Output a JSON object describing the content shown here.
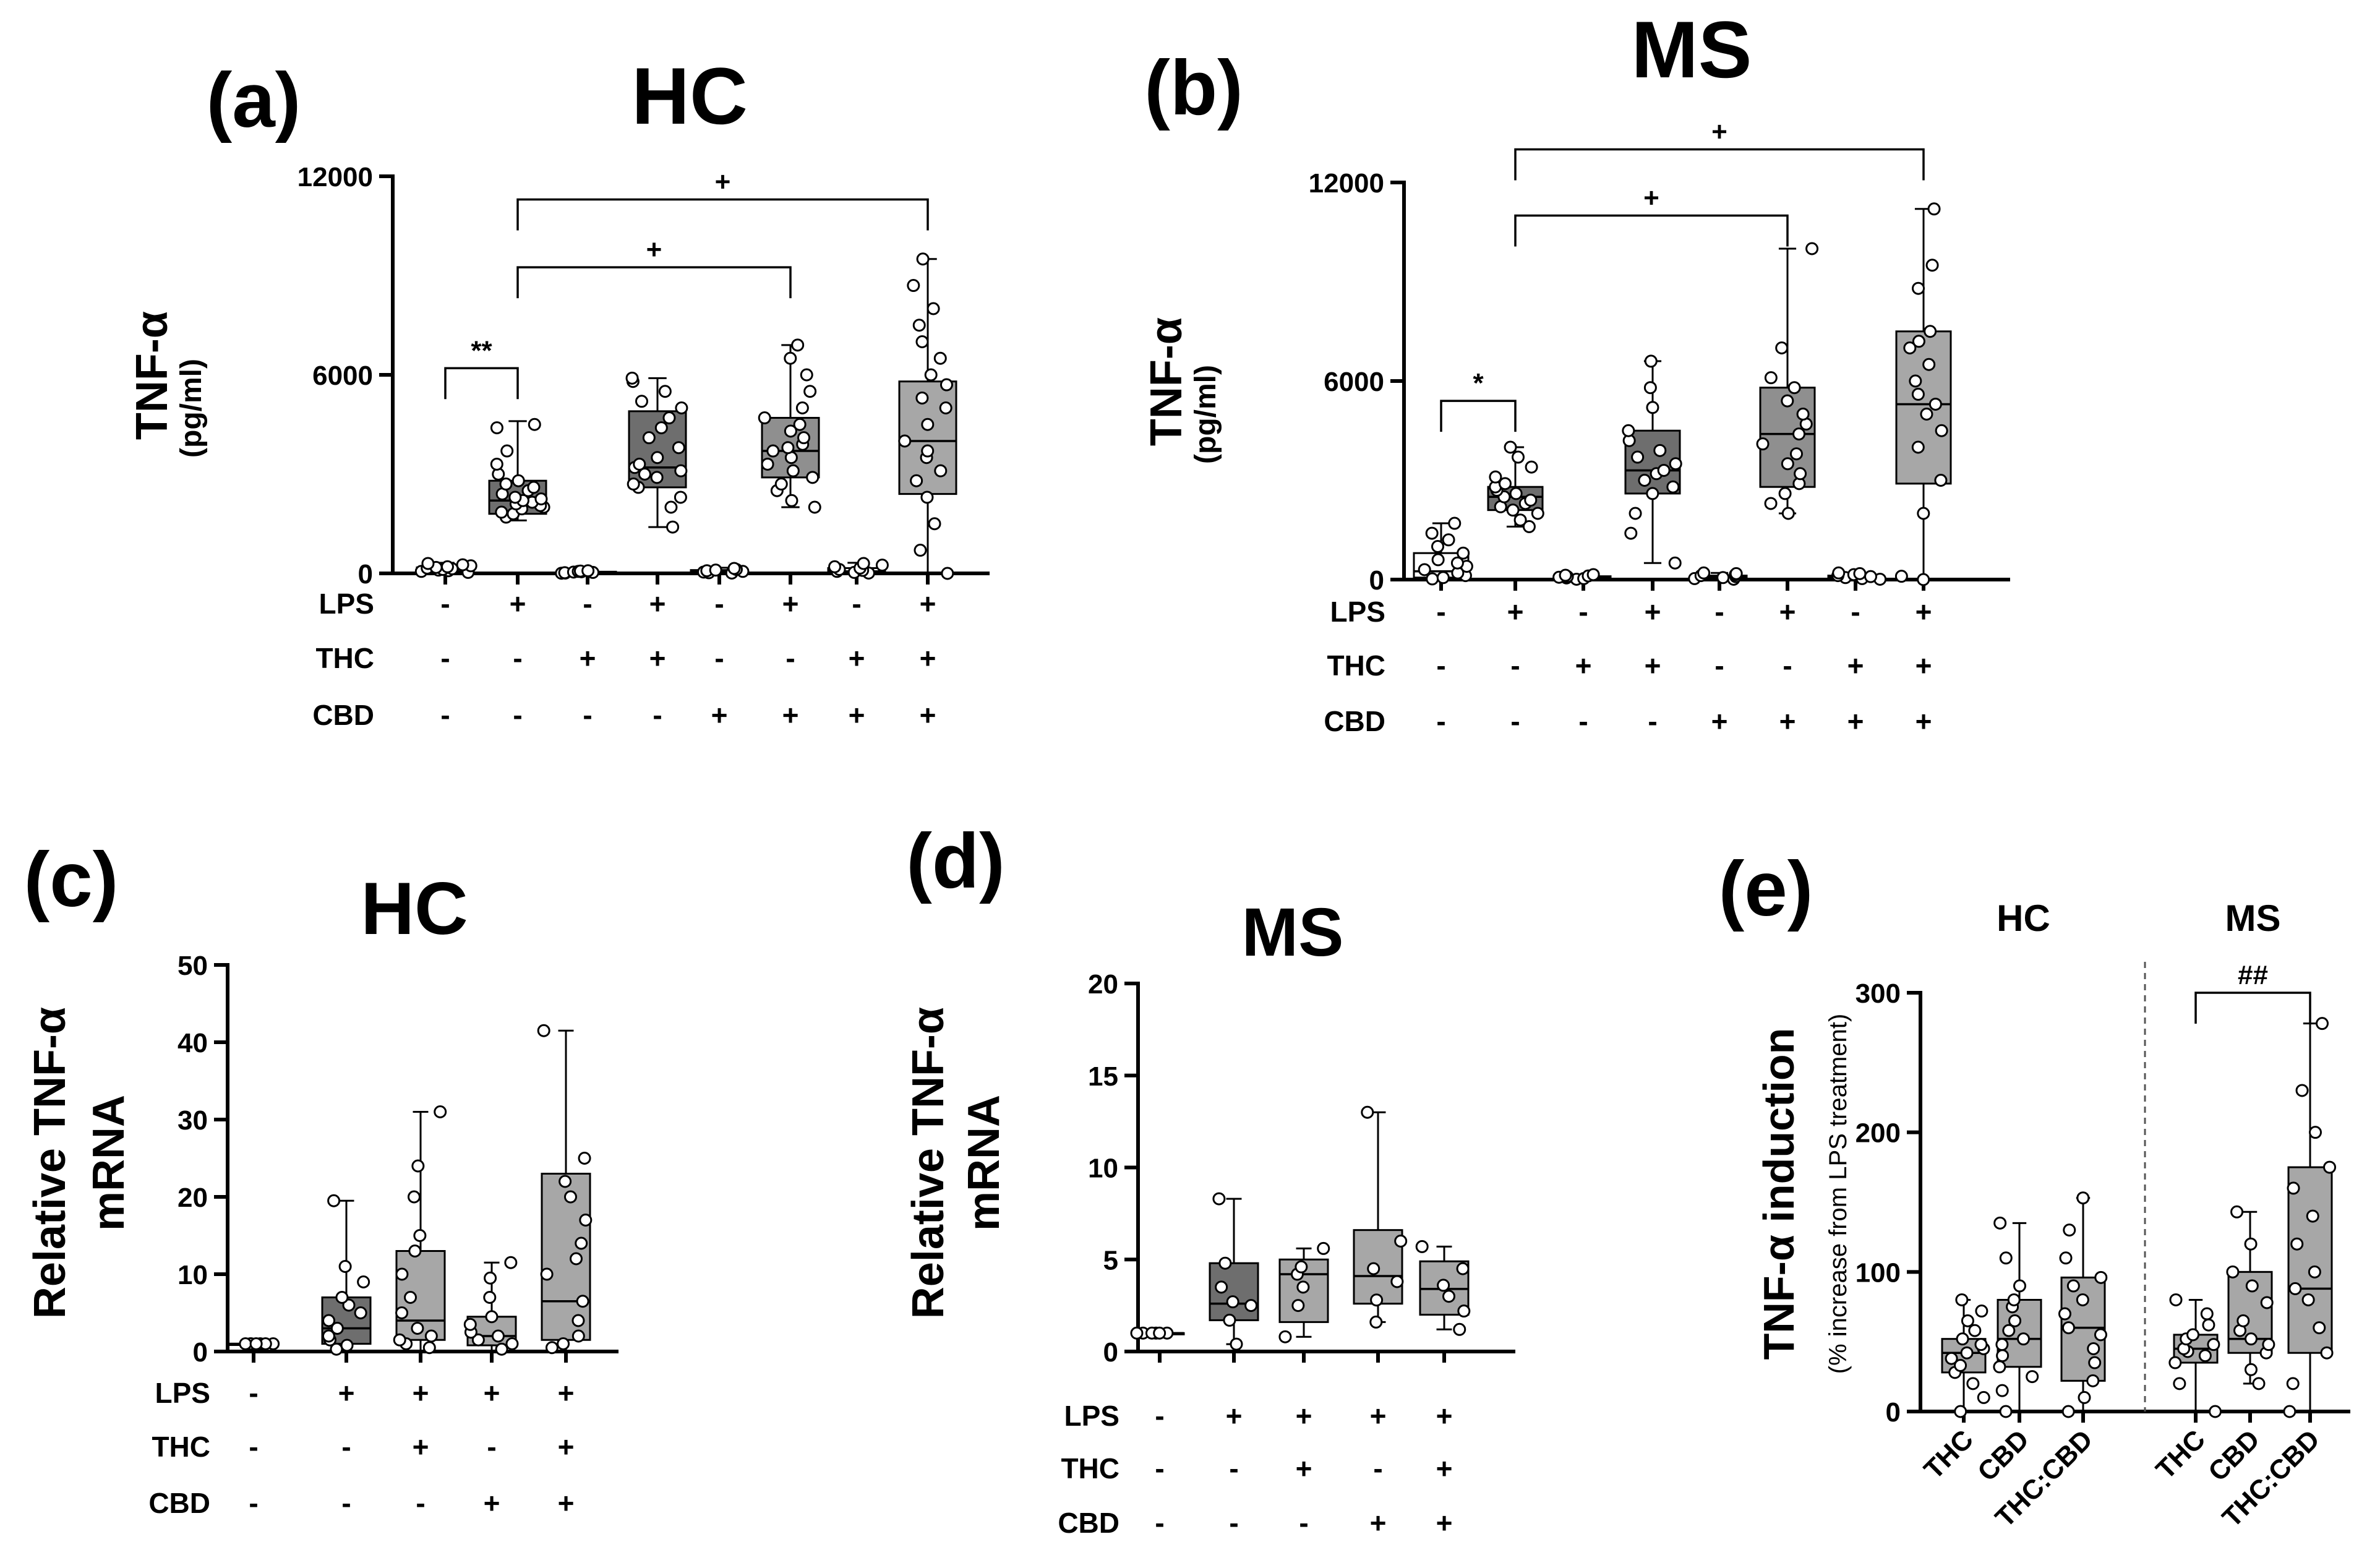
{
  "figure": {
    "panel_letters": [
      "(a)",
      "(b)",
      "(c)",
      "(d)",
      "(e)"
    ],
    "colors": {
      "white": "#ffffff",
      "dark": "#6e6e6e",
      "mid": "#8f8f8f",
      "light": "#a7a7a7",
      "axis": "#000000"
    }
  },
  "chart_data": [
    {
      "id": "a",
      "letter": "(a)",
      "type": "box",
      "title": "HC",
      "ylabel": "TNF-α",
      "ylabel_sub": "(pg/ml)",
      "ylim": [
        0,
        12000
      ],
      "yticks": [
        0,
        6000,
        12000
      ],
      "ytick_labels": [
        "0",
        "6000",
        "12000"
      ],
      "factors": [
        {
          "name": "LPS",
          "values": [
            "-",
            "+",
            "-",
            "+",
            "-",
            "+",
            "-",
            "+"
          ]
        },
        {
          "name": "THC",
          "values": [
            "-",
            "-",
            "+",
            "+",
            "-",
            "-",
            "+",
            "+"
          ]
        },
        {
          "name": "CBD",
          "values": [
            "-",
            "-",
            "-",
            "-",
            "+",
            "+",
            "+",
            "+"
          ]
        }
      ],
      "groups": [
        {
          "fill": "white",
          "min": 20,
          "q1": 50,
          "median": 110,
          "q3": 180,
          "max": 320,
          "points": [
            30,
            60,
            80,
            100,
            120,
            140,
            160,
            180,
            200,
            230,
            260,
            300
          ]
        },
        {
          "fill": "dark",
          "min": 1600,
          "q1": 1800,
          "median": 2200,
          "q3": 2800,
          "max": 4600,
          "points": [
            1700,
            1800,
            1850,
            1950,
            2000,
            2050,
            2100,
            2150,
            2200,
            2250,
            2300,
            2400,
            2500,
            2600,
            2700,
            2800,
            3000,
            3300,
            3700,
            4400,
            4500
          ]
        },
        {
          "fill": "white",
          "min": 0,
          "q1": 10,
          "median": 30,
          "q3": 50,
          "max": 90,
          "points": [
            5,
            10,
            20,
            30,
            40,
            50,
            60,
            70,
            80
          ]
        },
        {
          "fill": "dark",
          "min": 1400,
          "q1": 2600,
          "median": 3200,
          "q3": 4900,
          "max": 5900,
          "points": [
            1400,
            2000,
            2300,
            2600,
            2700,
            2900,
            3000,
            3100,
            3200,
            3300,
            3500,
            3800,
            4100,
            4400,
            4700,
            5000,
            5200,
            5500,
            5800,
            5900
          ]
        },
        {
          "fill": "white",
          "min": 0,
          "q1": 20,
          "median": 50,
          "q3": 100,
          "max": 170,
          "points": [
            10,
            20,
            40,
            60,
            80,
            100,
            120,
            150
          ]
        },
        {
          "fill": "mid",
          "min": 2000,
          "q1": 2900,
          "median": 3700,
          "q3": 4700,
          "max": 6900,
          "points": [
            2000,
            2200,
            2500,
            2700,
            2900,
            3100,
            3300,
            3500,
            3700,
            3800,
            3900,
            4100,
            4300,
            4500,
            4700,
            5000,
            5500,
            6000,
            6500,
            6900
          ]
        },
        {
          "fill": "white",
          "min": 0,
          "q1": 20,
          "median": 60,
          "q3": 160,
          "max": 320,
          "points": [
            10,
            30,
            60,
            90,
            120,
            160,
            200,
            250,
            300
          ]
        },
        {
          "fill": "light",
          "min": 0,
          "q1": 2400,
          "median": 4000,
          "q3": 5800,
          "max": 9500,
          "points": [
            0,
            700,
            1500,
            2300,
            2800,
            3100,
            3500,
            3700,
            4000,
            4500,
            5000,
            5300,
            5700,
            6000,
            6500,
            7000,
            7500,
            8000,
            8700,
            9500
          ]
        }
      ],
      "brackets": [
        {
          "from": 0,
          "to": 1,
          "y": 6200,
          "label": "**"
        },
        {
          "from": 1,
          "to": 5,
          "y": 9250,
          "label": "+"
        },
        {
          "from": 1,
          "to": 7,
          "y": 11300,
          "label": "+"
        }
      ]
    },
    {
      "id": "b",
      "letter": "(b)",
      "type": "box",
      "title": "MS",
      "ylabel": "TNF-α",
      "ylabel_sub": "(pg/ml)",
      "ylim": [
        0,
        12000
      ],
      "yticks": [
        0,
        6000,
        12000
      ],
      "ytick_labels": [
        "0",
        "6000",
        "12000"
      ],
      "factors": [
        {
          "name": "LPS",
          "values": [
            "-",
            "+",
            "-",
            "+",
            "-",
            "+",
            "-",
            "+"
          ]
        },
        {
          "name": "THC",
          "values": [
            "-",
            "-",
            "+",
            "+",
            "-",
            "-",
            "+",
            "+"
          ]
        },
        {
          "name": "CBD",
          "values": [
            "-",
            "-",
            "-",
            "-",
            "+",
            "+",
            "+",
            "+"
          ]
        }
      ],
      "groups": [
        {
          "fill": "white",
          "min": 0,
          "q1": 60,
          "median": 250,
          "q3": 800,
          "max": 1700,
          "points": [
            20,
            60,
            120,
            200,
            300,
            400,
            500,
            600,
            800,
            1000,
            1200,
            1400,
            1700
          ]
        },
        {
          "fill": "dark",
          "min": 1600,
          "q1": 2100,
          "median": 2500,
          "q3": 2800,
          "max": 4000,
          "points": [
            1600,
            1800,
            2000,
            2100,
            2200,
            2300,
            2400,
            2500,
            2600,
            2700,
            2800,
            2900,
            3100,
            3400,
            3700,
            4000
          ]
        },
        {
          "fill": "white",
          "min": 0,
          "q1": 20,
          "median": 50,
          "q3": 100,
          "max": 150,
          "points": [
            10,
            30,
            50,
            70,
            90,
            110,
            130,
            150
          ]
        },
        {
          "fill": "dark",
          "min": 500,
          "q1": 2600,
          "median": 3300,
          "q3": 4500,
          "max": 6600,
          "points": [
            500,
            1400,
            2000,
            2600,
            2800,
            3000,
            3200,
            3300,
            3500,
            3700,
            3900,
            4200,
            4500,
            5200,
            5800,
            6600
          ]
        },
        {
          "fill": "white",
          "min": 0,
          "q1": 20,
          "median": 60,
          "q3": 120,
          "max": 200,
          "points": [
            10,
            30,
            60,
            90,
            120,
            150,
            180,
            200
          ]
        },
        {
          "fill": "mid",
          "min": 2000,
          "q1": 2800,
          "median": 4400,
          "q3": 5800,
          "max": 10000,
          "points": [
            2000,
            2300,
            2600,
            2900,
            3200,
            3500,
            3800,
            4100,
            4400,
            4700,
            5000,
            5400,
            5800,
            6100,
            7000,
            10000
          ]
        },
        {
          "fill": "white",
          "min": 0,
          "q1": 20,
          "median": 60,
          "q3": 120,
          "max": 200,
          "points": [
            10,
            30,
            60,
            90,
            120,
            150,
            180,
            200
          ]
        },
        {
          "fill": "light",
          "min": 0,
          "q1": 2900,
          "median": 5300,
          "q3": 7500,
          "max": 11200,
          "points": [
            0,
            100,
            2000,
            3000,
            4000,
            4500,
            5000,
            5300,
            5600,
            6000,
            6500,
            7000,
            7200,
            7500,
            8800,
            9500,
            11200
          ]
        }
      ],
      "brackets": [
        {
          "from": 0,
          "to": 1,
          "y": 5400,
          "label": "*"
        },
        {
          "from": 1,
          "to": 5,
          "y": 11000,
          "label": "+"
        },
        {
          "from": 1,
          "to": 7,
          "y": 13000,
          "label": "+"
        }
      ]
    },
    {
      "id": "c",
      "letter": "(c)",
      "type": "box",
      "title": "HC",
      "ylabel": "Relative TNF-α",
      "ylabel_sub": "mRNA",
      "ylim": [
        0,
        50
      ],
      "yticks": [
        0,
        10,
        20,
        30,
        40,
        50
      ],
      "ytick_labels": [
        "0",
        "10",
        "20",
        "30",
        "40",
        "50"
      ],
      "factors": [
        {
          "name": "LPS",
          "values": [
            "-",
            "+",
            "+",
            "+",
            "+"
          ]
        },
        {
          "name": "THC",
          "values": [
            "-",
            "-",
            "+",
            "-",
            "+"
          ]
        },
        {
          "name": "CBD",
          "values": [
            "-",
            "-",
            "-",
            "+",
            "+"
          ]
        }
      ],
      "groups": [
        {
          "fill": "white",
          "min": 1,
          "q1": 1,
          "median": 1,
          "q3": 1,
          "max": 1,
          "points": [
            1,
            1,
            1,
            1,
            1,
            1,
            1
          ]
        },
        {
          "fill": "dark",
          "min": 0,
          "q1": 1,
          "median": 3,
          "q3": 7,
          "max": 19.5,
          "points": [
            0.3,
            0.8,
            1.5,
            2,
            3,
            4,
            5,
            6,
            7,
            9,
            11,
            19.5
          ]
        },
        {
          "fill": "light",
          "min": 0,
          "q1": 1.5,
          "median": 4,
          "q3": 13,
          "max": 31,
          "points": [
            0.5,
            1,
            1.5,
            2,
            3,
            5,
            7,
            10,
            13,
            15,
            20,
            24,
            31
          ]
        },
        {
          "fill": "light",
          "min": 0,
          "q1": 0.8,
          "median": 2,
          "q3": 4.5,
          "max": 11.5,
          "points": [
            0.3,
            1,
            1.5,
            2,
            2.5,
            3.5,
            4.5,
            7,
            9.5,
            11.5
          ]
        },
        {
          "fill": "light",
          "min": 0,
          "q1": 1.5,
          "median": 6.5,
          "q3": 23,
          "max": 41.5,
          "points": [
            0.5,
            1,
            2,
            4,
            6.5,
            10,
            12,
            14,
            17,
            20,
            22,
            25,
            41.5
          ]
        }
      ],
      "brackets": []
    },
    {
      "id": "d",
      "letter": "(d)",
      "type": "box",
      "title": "MS",
      "ylabel": "Relative TNF-α",
      "ylabel_sub": "mRNA",
      "ylim": [
        0,
        20
      ],
      "yticks": [
        0,
        5,
        10,
        15,
        20
      ],
      "ytick_labels": [
        "0",
        "5",
        "10",
        "15",
        "20"
      ],
      "factors": [
        {
          "name": "LPS",
          "values": [
            "-",
            "+",
            "+",
            "+",
            "+"
          ]
        },
        {
          "name": "THC",
          "values": [
            "-",
            "-",
            "+",
            "-",
            "+"
          ]
        },
        {
          "name": "CBD",
          "values": [
            "-",
            "-",
            "-",
            "+",
            "+"
          ]
        }
      ],
      "groups": [
        {
          "fill": "white",
          "min": 1,
          "q1": 1,
          "median": 1,
          "q3": 1,
          "max": 1,
          "points": [
            1,
            1,
            1,
            1,
            1,
            1
          ]
        },
        {
          "fill": "dark",
          "min": 0.4,
          "q1": 1.7,
          "median": 2.6,
          "q3": 4.8,
          "max": 8.3,
          "points": [
            0.4,
            1.7,
            2.5,
            2.7,
            3.5,
            4.8,
            8.3
          ]
        },
        {
          "fill": "light",
          "min": 0.8,
          "q1": 1.6,
          "median": 4.2,
          "q3": 5,
          "max": 5.6,
          "points": [
            0.8,
            2.5,
            3.5,
            4.2,
            4.6,
            5.6
          ]
        },
        {
          "fill": "light",
          "min": 1.6,
          "q1": 2.6,
          "median": 4.1,
          "q3": 6.6,
          "max": 13,
          "points": [
            1.6,
            2.8,
            3.8,
            4.5,
            6,
            13
          ]
        },
        {
          "fill": "light",
          "min": 1.2,
          "q1": 2,
          "median": 3.4,
          "q3": 4.9,
          "max": 5.7,
          "points": [
            1.2,
            2.2,
            3,
            3.6,
            4.5,
            5.7
          ]
        }
      ],
      "brackets": []
    },
    {
      "id": "e",
      "letter": "(e)",
      "type": "box",
      "titles": [
        "HC",
        "MS"
      ],
      "ylabel": "TNF-α induction",
      "ylabel_sub": "(% increase from LPS treatment)",
      "ylim": [
        0,
        300
      ],
      "yticks": [
        0,
        100,
        200,
        300
      ],
      "ytick_labels": [
        "0",
        "100",
        "200",
        "300"
      ],
      "categories": [
        "THC",
        "CBD",
        "THC:CBD",
        "THC",
        "CBD",
        "THC:CBD"
      ],
      "groups": [
        {
          "fill": "light",
          "min": 0,
          "q1": 28,
          "median": 42,
          "q3": 52,
          "max": 80,
          "points": [
            0,
            10,
            20,
            28,
            33,
            38,
            42,
            45,
            48,
            52,
            58,
            65,
            72,
            80
          ]
        },
        {
          "fill": "light",
          "min": 0,
          "q1": 32,
          "median": 52,
          "q3": 80,
          "max": 135,
          "points": [
            0,
            15,
            25,
            32,
            40,
            48,
            52,
            58,
            65,
            75,
            80,
            90,
            110,
            135
          ]
        },
        {
          "fill": "light",
          "min": 0,
          "q1": 22,
          "median": 60,
          "q3": 96,
          "max": 153,
          "points": [
            0,
            10,
            22,
            35,
            45,
            55,
            60,
            70,
            80,
            90,
            96,
            110,
            130,
            153
          ]
        },
        {
          "fill": "light",
          "min": 0,
          "q1": 35,
          "median": 45,
          "q3": 55,
          "max": 80,
          "points": [
            0,
            20,
            35,
            40,
            43,
            45,
            48,
            52,
            55,
            62,
            70,
            80
          ]
        },
        {
          "fill": "light",
          "min": 20,
          "q1": 42,
          "median": 52,
          "q3": 100,
          "max": 143,
          "points": [
            20,
            30,
            42,
            48,
            52,
            58,
            65,
            78,
            90,
            100,
            120,
            143
          ]
        },
        {
          "fill": "light",
          "min": 0,
          "q1": 42,
          "median": 88,
          "q3": 175,
          "max": 278,
          "points": [
            0,
            20,
            42,
            60,
            80,
            88,
            100,
            120,
            140,
            160,
            175,
            200,
            230,
            278
          ]
        }
      ],
      "brackets": [
        {
          "from": 3,
          "to": 5,
          "y": 300,
          "label": "##"
        }
      ]
    }
  ]
}
